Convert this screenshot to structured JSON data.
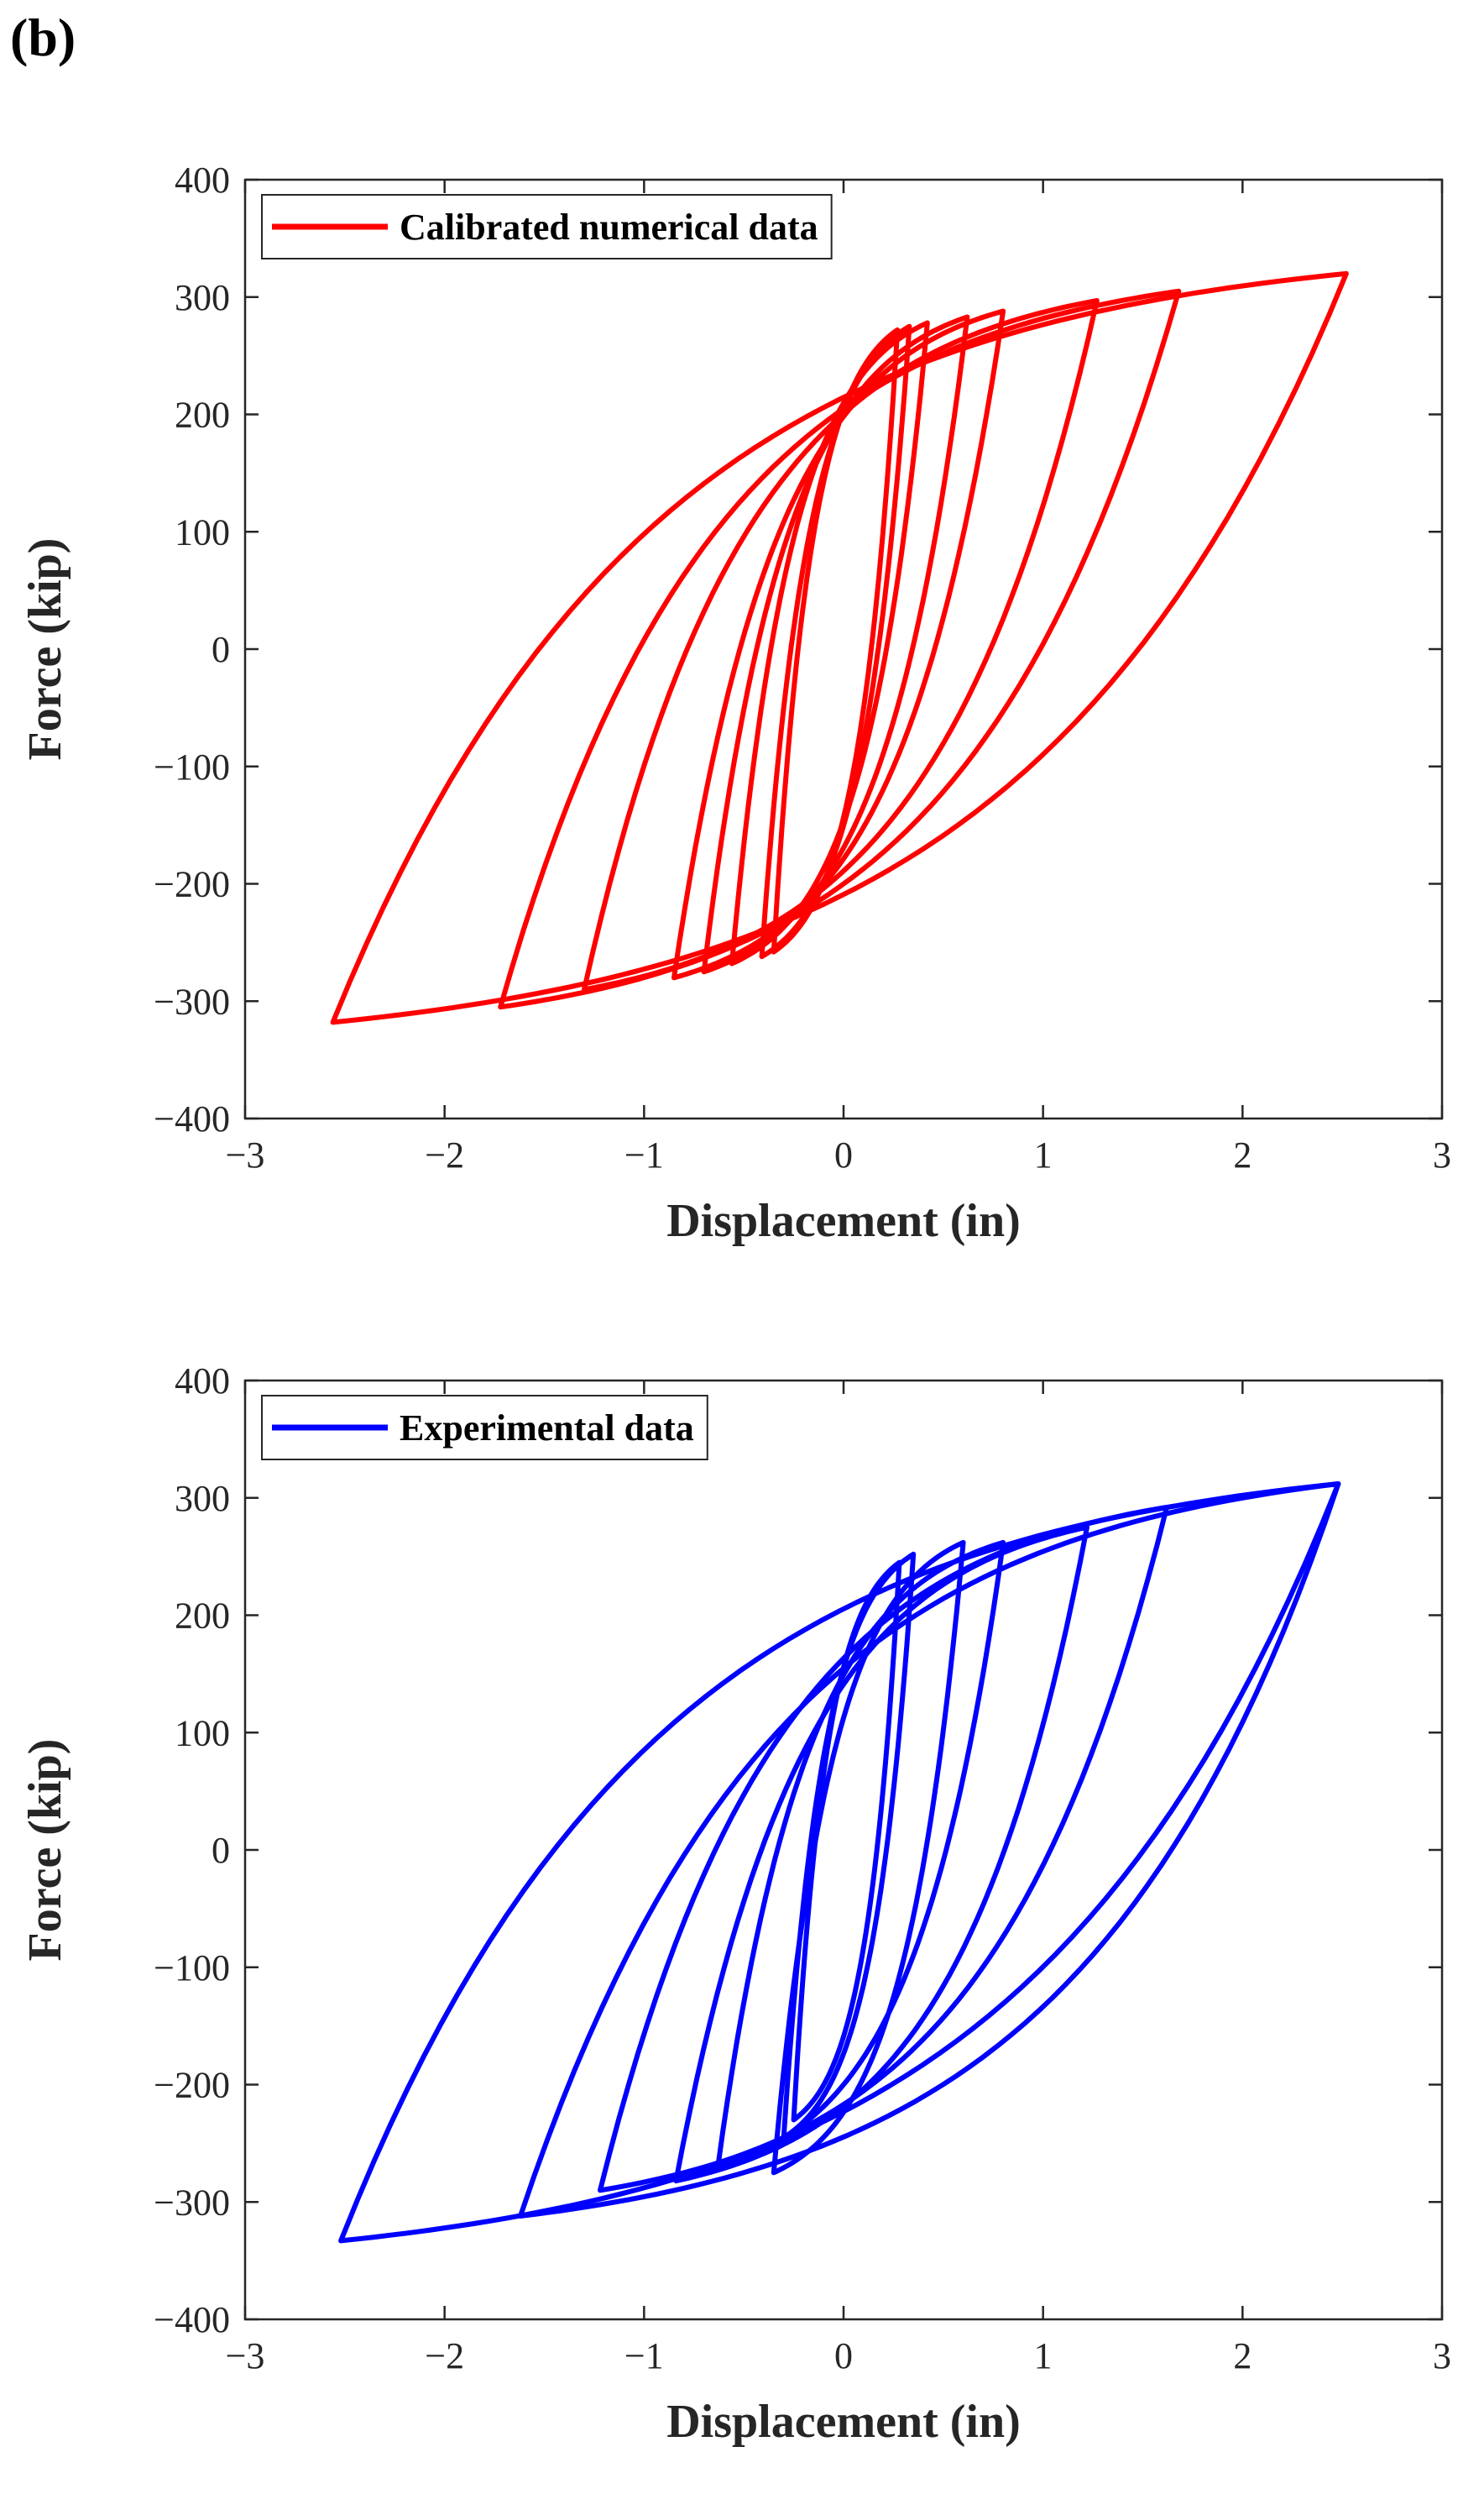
{
  "figure_label": "(b)",
  "colors": {
    "numerical": "#ff0000",
    "experimental": "#0000ff",
    "axis": "#262626"
  },
  "chart_data": [
    {
      "type": "line",
      "id": "numerical",
      "legend": "Calibrated numerical data",
      "legend_position": "top-left",
      "xlabel": "Displacement (in)",
      "ylabel": "Force (kip)",
      "xlim": [
        -3,
        3
      ],
      "ylim": [
        -400,
        400
      ],
      "xticks": [
        -3,
        -2,
        -1,
        0,
        1,
        2,
        3
      ],
      "yticks": [
        -400,
        -300,
        -200,
        -100,
        0,
        100,
        200,
        300,
        400
      ],
      "xtick_labels": [
        "−3",
        "−2",
        "−1",
        "0",
        "1",
        "2",
        "3"
      ],
      "ytick_labels": [
        "−400",
        "−300",
        "−200",
        "−100",
        "0",
        "100",
        "200",
        "300",
        "400"
      ],
      "loops": [
        {
          "pos": 0.27,
          "neg": -0.35,
          "fpos": 272,
          "fneg": -258
        },
        {
          "pos": 0.33,
          "neg": -0.41,
          "fpos": 275,
          "fneg": -262
        },
        {
          "pos": 0.42,
          "neg": -0.56,
          "fpos": 278,
          "fneg": -268
        },
        {
          "pos": 0.62,
          "neg": -0.7,
          "fpos": 283,
          "fneg": -275
        },
        {
          "pos": 0.8,
          "neg": -0.85,
          "fpos": 288,
          "fneg": -280
        },
        {
          "pos": 1.27,
          "neg": -1.3,
          "fpos": 297,
          "fneg": -290
        },
        {
          "pos": 1.68,
          "neg": -1.72,
          "fpos": 305,
          "fneg": -305
        },
        {
          "pos": 2.52,
          "neg": -2.56,
          "fpos": 320,
          "fneg": -318
        }
      ]
    },
    {
      "type": "line",
      "id": "experimental",
      "legend": "Experimental data",
      "legend_position": "top-left",
      "xlabel": "Displacement (in)",
      "ylabel": "Force (kip)",
      "xlim": [
        -3,
        3
      ],
      "ylim": [
        -400,
        400
      ],
      "xticks": [
        -3,
        -2,
        -1,
        0,
        1,
        2,
        3
      ],
      "yticks": [
        -400,
        -300,
        -200,
        -100,
        0,
        100,
        200,
        300,
        400
      ],
      "xtick_labels": [
        "−3",
        "−2",
        "−1",
        "0",
        "1",
        "2",
        "3"
      ],
      "ytick_labels": [
        "−400",
        "−300",
        "−200",
        "−100",
        "0",
        "100",
        "200",
        "300",
        "400"
      ],
      "loops": [
        {
          "pos": 0.28,
          "neg": -0.25,
          "fpos": 245,
          "fneg": -230
        },
        {
          "pos": 0.35,
          "neg": -0.3,
          "fpos": 252,
          "fneg": -245
        },
        {
          "pos": 0.6,
          "neg": -0.35,
          "fpos": 262,
          "fneg": -275
        },
        {
          "pos": 0.8,
          "neg": -0.63,
          "fpos": 262,
          "fneg": -270
        },
        {
          "pos": 1.22,
          "neg": -0.84,
          "fpos": 275,
          "fneg": -282
        },
        {
          "pos": 1.62,
          "neg": -1.22,
          "fpos": 292,
          "fneg": -290
        },
        {
          "pos": 2.48,
          "neg": -1.62,
          "fpos": 312,
          "fneg": -312
        },
        {
          "pos": 2.48,
          "neg": -2.52,
          "fpos": 312,
          "fneg": -333
        }
      ]
    }
  ]
}
